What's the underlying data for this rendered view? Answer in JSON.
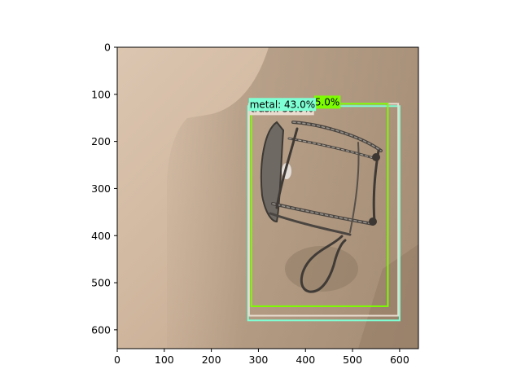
{
  "axes": {
    "x_ticks": [
      "0",
      "100",
      "200",
      "300",
      "400",
      "500",
      "600"
    ],
    "y_ticks": [
      "0",
      "100",
      "200",
      "300",
      "400",
      "500",
      "600"
    ],
    "x_values": [
      0,
      100,
      200,
      300,
      400,
      500,
      600
    ],
    "y_values": [
      0,
      100,
      200,
      300,
      400,
      500,
      600
    ],
    "xlim": [
      0,
      640
    ],
    "ylim": [
      640,
      0
    ]
  },
  "detections": [
    {
      "label": "metal: 43.0%",
      "color": "#7fffd4",
      "box": {
        "x1": 278,
        "y1": 125,
        "x2": 600,
        "y2": 580
      }
    },
    {
      "label": "trash: 55.0%",
      "color": "#e9dccf",
      "box": {
        "x1": 280,
        "y1": 120,
        "x2": 597,
        "y2": 570
      }
    },
    {
      "label": "5.0%",
      "color": "#7cfc00",
      "box": {
        "x1": 285,
        "y1": 120,
        "x2": 575,
        "y2": 550
      }
    }
  ]
}
